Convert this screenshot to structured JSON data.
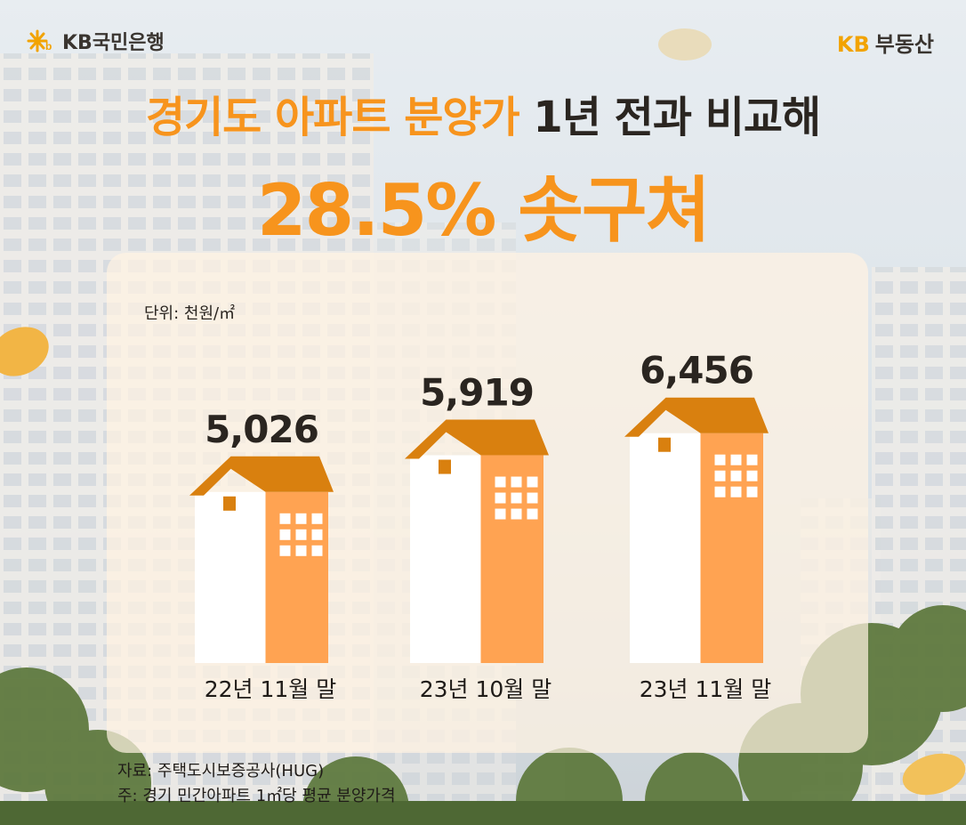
{
  "brand": {
    "left_name": "KB국민은행",
    "right_kb": "KB",
    "right_name": "부동산"
  },
  "headline": {
    "line1_highlight": "경기도 아파트 분양가",
    "line1_rest": "1년 전과 비교해",
    "line2": "28.5% 솟구쳐"
  },
  "colors": {
    "accent": "#f7941d",
    "house_dark": "#ffa352",
    "house_roof": "#d9800f",
    "house_light": "#ffffff",
    "text_dark": "#2a2520"
  },
  "chart_data": {
    "type": "bar",
    "categories": [
      "22년 11월 말",
      "23년 10월 말",
      "23년 11월 말"
    ],
    "values": [
      5026,
      5919,
      6456
    ],
    "value_labels": [
      "5,026",
      "5,919",
      "6,456"
    ],
    "unit": "단위: 천원/㎡",
    "title": "",
    "xlabel": "",
    "ylabel": "",
    "grid": false,
    "legend": false
  },
  "footnotes": {
    "source": "자료: 주택도시보증공사(HUG)",
    "note": "주: 경기 민간아파트 1㎡당 평균 분양가격"
  }
}
